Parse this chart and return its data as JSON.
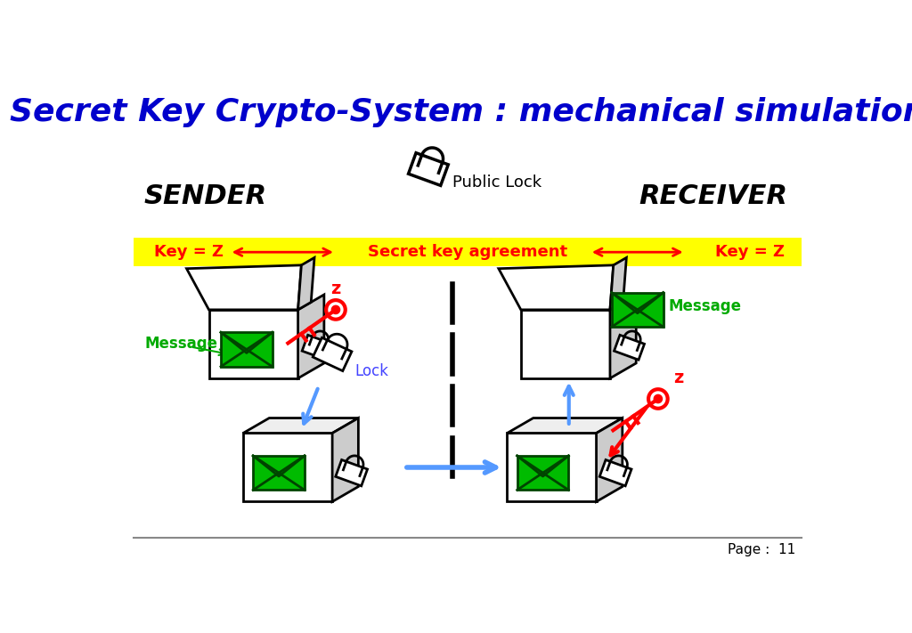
{
  "title": "Secret Key Crypto-System : mechanical simulation",
  "title_color": "#0000CC",
  "title_fontsize": 26,
  "bg_color": "#FFFFFF",
  "yellow_bar_color": "#FFFF00",
  "yellow_bar_text_color": "#FF0000",
  "yellow_bar_text": "Secret key agreement",
  "key_z_left": "Key = Z",
  "key_z_right": "Key = Z",
  "sender_label": "SENDER",
  "receiver_label": "RECEIVER",
  "public_lock_label": "Public Lock",
  "lock_label": "Lock",
  "message_label_left": "Message",
  "message_label_right": "Message",
  "z_label": "z",
  "page_text": "Page :  11"
}
